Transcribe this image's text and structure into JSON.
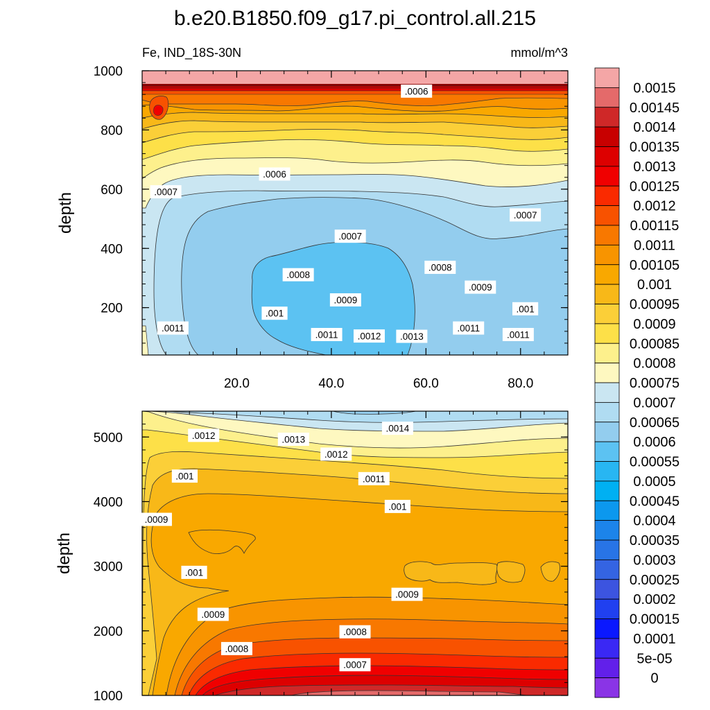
{
  "chart_data": [
    {
      "type": "heatmap",
      "subtype": "filled-contour",
      "panel": "upper",
      "title": "b.e20.B1850.f09_g17.pi_control.all.215",
      "left_subtitle": "Fe, IND_18S-30N",
      "right_subtitle": "mmol/m^3",
      "ylabel": "depth",
      "xlabel": "",
      "xlim": [
        0,
        90
      ],
      "ylim": [
        1000,
        40
      ],
      "x_ticks": [
        "20.0",
        "40.0",
        "60.0",
        "80.0"
      ],
      "y_ticks": [
        "200",
        "400",
        "600",
        "800",
        "1000"
      ],
      "contour_labels": [
        {
          "text": ".0011",
          "x": 6.5,
          "y": 130
        },
        {
          "text": ".0011",
          "x": 39,
          "y": 108
        },
        {
          "text": ".0012",
          "x": 48,
          "y": 103
        },
        {
          "text": ".0013",
          "x": 57,
          "y": 102
        },
        {
          "text": ".0011",
          "x": 69,
          "y": 130
        },
        {
          "text": ".0011",
          "x": 79.5,
          "y": 108
        },
        {
          "text": ".001",
          "x": 28,
          "y": 180
        },
        {
          "text": ".0009",
          "x": 43,
          "y": 225
        },
        {
          "text": ".001",
          "x": 81,
          "y": 195
        },
        {
          "text": ".0009",
          "x": 71.5,
          "y": 268
        },
        {
          "text": ".0008",
          "x": 33,
          "y": 310
        },
        {
          "text": ".0008",
          "x": 63,
          "y": 335
        },
        {
          "text": ".0007",
          "x": 44,
          "y": 440
        },
        {
          "text": ".0007",
          "x": 81,
          "y": 512
        },
        {
          "text": ".0007",
          "x": 5,
          "y": 590
        },
        {
          "text": ".0006",
          "x": 28,
          "y": 650
        },
        {
          "text": ".0006",
          "x": 58,
          "y": 930
        }
      ],
      "surface_value_approx": 0.0015,
      "core_min_value_approx": 0.00055
    },
    {
      "type": "heatmap",
      "subtype": "filled-contour",
      "panel": "lower",
      "ylabel": "depth",
      "xlabel": "",
      "xlim": [
        0,
        90
      ],
      "ylim": [
        5400,
        1000
      ],
      "y_ticks": [
        "1000",
        "2000",
        "3000",
        "4000",
        "5000"
      ],
      "contour_labels": [
        {
          "text": ".0007",
          "x": 45,
          "y": 1470
        },
        {
          "text": ".0008",
          "x": 20,
          "y": 1720
        },
        {
          "text": ".0008",
          "x": 45,
          "y": 1980
        },
        {
          "text": ".0009",
          "x": 15,
          "y": 2250
        },
        {
          "text": ".0009",
          "x": 56,
          "y": 2560
        },
        {
          "text": ".001",
          "x": 11,
          "y": 2900
        },
        {
          "text": ".0009",
          "x": 3,
          "y": 3720
        },
        {
          "text": ".001",
          "x": 54,
          "y": 3920
        },
        {
          "text": ".001",
          "x": 9,
          "y": 4390
        },
        {
          "text": ".0011",
          "x": 49,
          "y": 4350
        },
        {
          "text": ".0012",
          "x": 41,
          "y": 4730
        },
        {
          "text": ".0012",
          "x": 13,
          "y": 5020
        },
        {
          "text": ".0013",
          "x": 32,
          "y": 4960
        },
        {
          "text": ".0014",
          "x": 54,
          "y": 5130
        }
      ],
      "bottom_value_approx": 0.0015,
      "mid_value_approx": 0.00095
    }
  ],
  "colorbar": {
    "labels": [
      "0.0015",
      "0.00145",
      "0.0014",
      "0.00135",
      "0.0013",
      "0.00125",
      "0.0012",
      "0.00115",
      "0.0011",
      "0.00105",
      "0.001",
      "0.00095",
      "0.0009",
      "0.00085",
      "0.0008",
      "0.00075",
      "0.0007",
      "0.00065",
      "0.0006",
      "0.00055",
      "0.0005",
      "0.00045",
      "0.0004",
      "0.00035",
      "0.0003",
      "0.00025",
      "0.0002",
      "0.00015",
      "0.0001",
      "5e-05",
      "0"
    ],
    "colors": [
      "#f4a6a6",
      "#e46a6a",
      "#cf2828",
      "#c80000",
      "#dd0000",
      "#f00000",
      "#fa2a00",
      "#f85200",
      "#f87800",
      "#f89400",
      "#f9a800",
      "#f8b818",
      "#fbcf38",
      "#fde048",
      "#fdf08c",
      "#fef8c0",
      "#cae6f2",
      "#b0dcf2",
      "#93cdee",
      "#5cc2f2",
      "#28b6f2",
      "#00b0f2",
      "#0c98ee",
      "#1c84ea",
      "#2874e6",
      "#3464e2",
      "#3c54e0",
      "#2040f0",
      "#0a18ff",
      "#3a28f4",
      "#6220ea",
      "#8a34e6"
    ]
  }
}
